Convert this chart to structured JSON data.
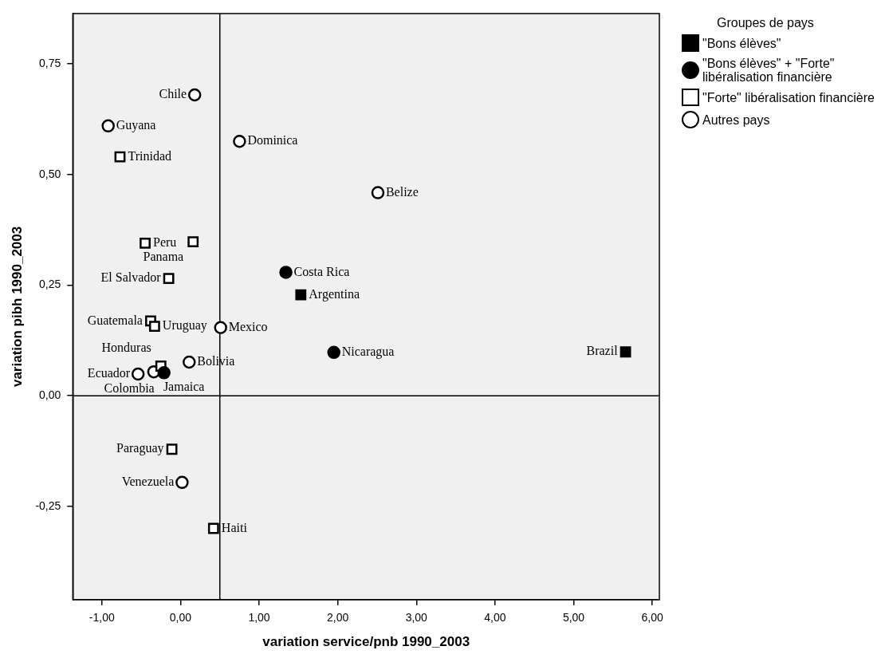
{
  "chart_data": {
    "type": "scatter",
    "xlabel": "variation service/pnb 1990_2003",
    "ylabel": "variation pibh 1990_2003",
    "legend_title": "Groupes de pays",
    "legend": "top right",
    "xlim": [
      -1.37,
      6.09
    ],
    "xticks": [
      {
        "value": -1,
        "label": "-1,00"
      },
      {
        "value": 0,
        "label": "0,00"
      },
      {
        "value": 1,
        "label": "1,00"
      },
      {
        "value": 2,
        "label": "2,00"
      },
      {
        "value": 3,
        "label": "3,00"
      },
      {
        "value": 4,
        "label": "4,00"
      },
      {
        "value": 5,
        "label": "5,00"
      },
      {
        "value": 6,
        "label": "6,00"
      }
    ],
    "ylim": [
      -0.461,
      0.864
    ],
    "yticks": [
      {
        "value": -0.25,
        "label": "-0,25"
      },
      {
        "value": 0,
        "label": "0,00"
      },
      {
        "value": 0.25,
        "label": "0,25"
      },
      {
        "value": 0.5,
        "label": "0,50"
      },
      {
        "value": 0.75,
        "label": "0,75"
      }
    ],
    "ref_lines": [
      {
        "axis": "x",
        "value": 0.5
      },
      {
        "axis": "y",
        "value": 0
      }
    ],
    "series": [
      {
        "name": "\"Bons élèves\"",
        "color": "#000000",
        "marker": "square",
        "x": [
          1.53,
          5.66
        ],
        "values": [
          0.228,
          0.099
        ],
        "value_labels": [
          "Argentina",
          "Brazil"
        ]
      },
      {
        "name": "\"Bons élèves\" + \"Forte\" libéralisation financière",
        "color": "#000000",
        "marker": "circle",
        "x": [
          1.34,
          1.95,
          -0.21
        ],
        "values": [
          0.279,
          0.098,
          0.052
        ],
        "value_labels": [
          "Costa Rica",
          "Nicaragua",
          "Colombia"
        ]
      },
      {
        "name": "\"Forte\" libéralisation financière",
        "color": "#ffffff",
        "marker": "square",
        "x": [
          -0.77,
          -0.45,
          0.16,
          -0.15,
          -0.38,
          -0.33,
          -0.25,
          -0.11,
          0.42
        ],
        "values": [
          0.54,
          0.345,
          0.348,
          0.265,
          0.169,
          0.157,
          0.067,
          -0.121,
          -0.3
        ],
        "value_labels": [
          "Trinidad",
          "Peru",
          "Panama",
          "El Salvador",
          "Guatemala",
          "Uruguay",
          "Honduras",
          "Paraguay",
          "Haiti"
        ]
      },
      {
        "name": "Autres pays",
        "color": "#ffffff",
        "marker": "circle",
        "x": [
          0.18,
          -0.92,
          0.75,
          2.51,
          0.51,
          0.11,
          -0.54,
          -0.34,
          0.02
        ],
        "values": [
          0.68,
          0.61,
          0.575,
          0.459,
          0.154,
          0.076,
          0.049,
          0.054,
          -0.196
        ],
        "value_labels": [
          "Chile",
          "Guyana",
          "Dominica",
          "Belize",
          "Mexico",
          "Bolivia",
          "Ecuador",
          "Jamaica",
          "Venezuela"
        ]
      }
    ]
  }
}
